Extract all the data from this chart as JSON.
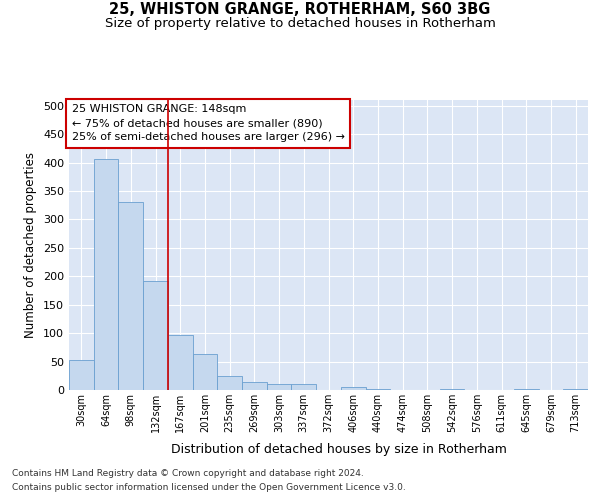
{
  "title1": "25, WHISTON GRANGE, ROTHERHAM, S60 3BG",
  "title2": "Size of property relative to detached houses in Rotherham",
  "xlabel": "Distribution of detached houses by size in Rotherham",
  "ylabel": "Number of detached properties",
  "bar_labels": [
    "30sqm",
    "64sqm",
    "98sqm",
    "132sqm",
    "167sqm",
    "201sqm",
    "235sqm",
    "269sqm",
    "303sqm",
    "337sqm",
    "372sqm",
    "406sqm",
    "440sqm",
    "474sqm",
    "508sqm",
    "542sqm",
    "576sqm",
    "611sqm",
    "645sqm",
    "679sqm",
    "713sqm"
  ],
  "bar_values": [
    52,
    406,
    330,
    192,
    97,
    63,
    25,
    14,
    10,
    10,
    0,
    6,
    2,
    0,
    0,
    2,
    0,
    0,
    2,
    0,
    2
  ],
  "bar_color": "#c5d8ee",
  "bar_edge_color": "#6a9fd0",
  "vline_x": 3.5,
  "vline_color": "#cc0000",
  "annotation_text": "25 WHISTON GRANGE: 148sqm\n← 75% of detached houses are smaller (890)\n25% of semi-detached houses are larger (296) →",
  "annotation_box_facecolor": "#ffffff",
  "annotation_box_edgecolor": "#cc0000",
  "ylim": [
    0,
    510
  ],
  "yticks": [
    0,
    50,
    100,
    150,
    200,
    250,
    300,
    350,
    400,
    450,
    500
  ],
  "background_color": "#dce6f5",
  "grid_color": "#ffffff",
  "footer1": "Contains HM Land Registry data © Crown copyright and database right 2024.",
  "footer2": "Contains public sector information licensed under the Open Government Licence v3.0.",
  "title1_fontsize": 10.5,
  "title2_fontsize": 9.5,
  "xlabel_fontsize": 9,
  "ylabel_fontsize": 8.5,
  "tick_fontsize": 8,
  "xtick_fontsize": 7,
  "footer_fontsize": 6.5
}
